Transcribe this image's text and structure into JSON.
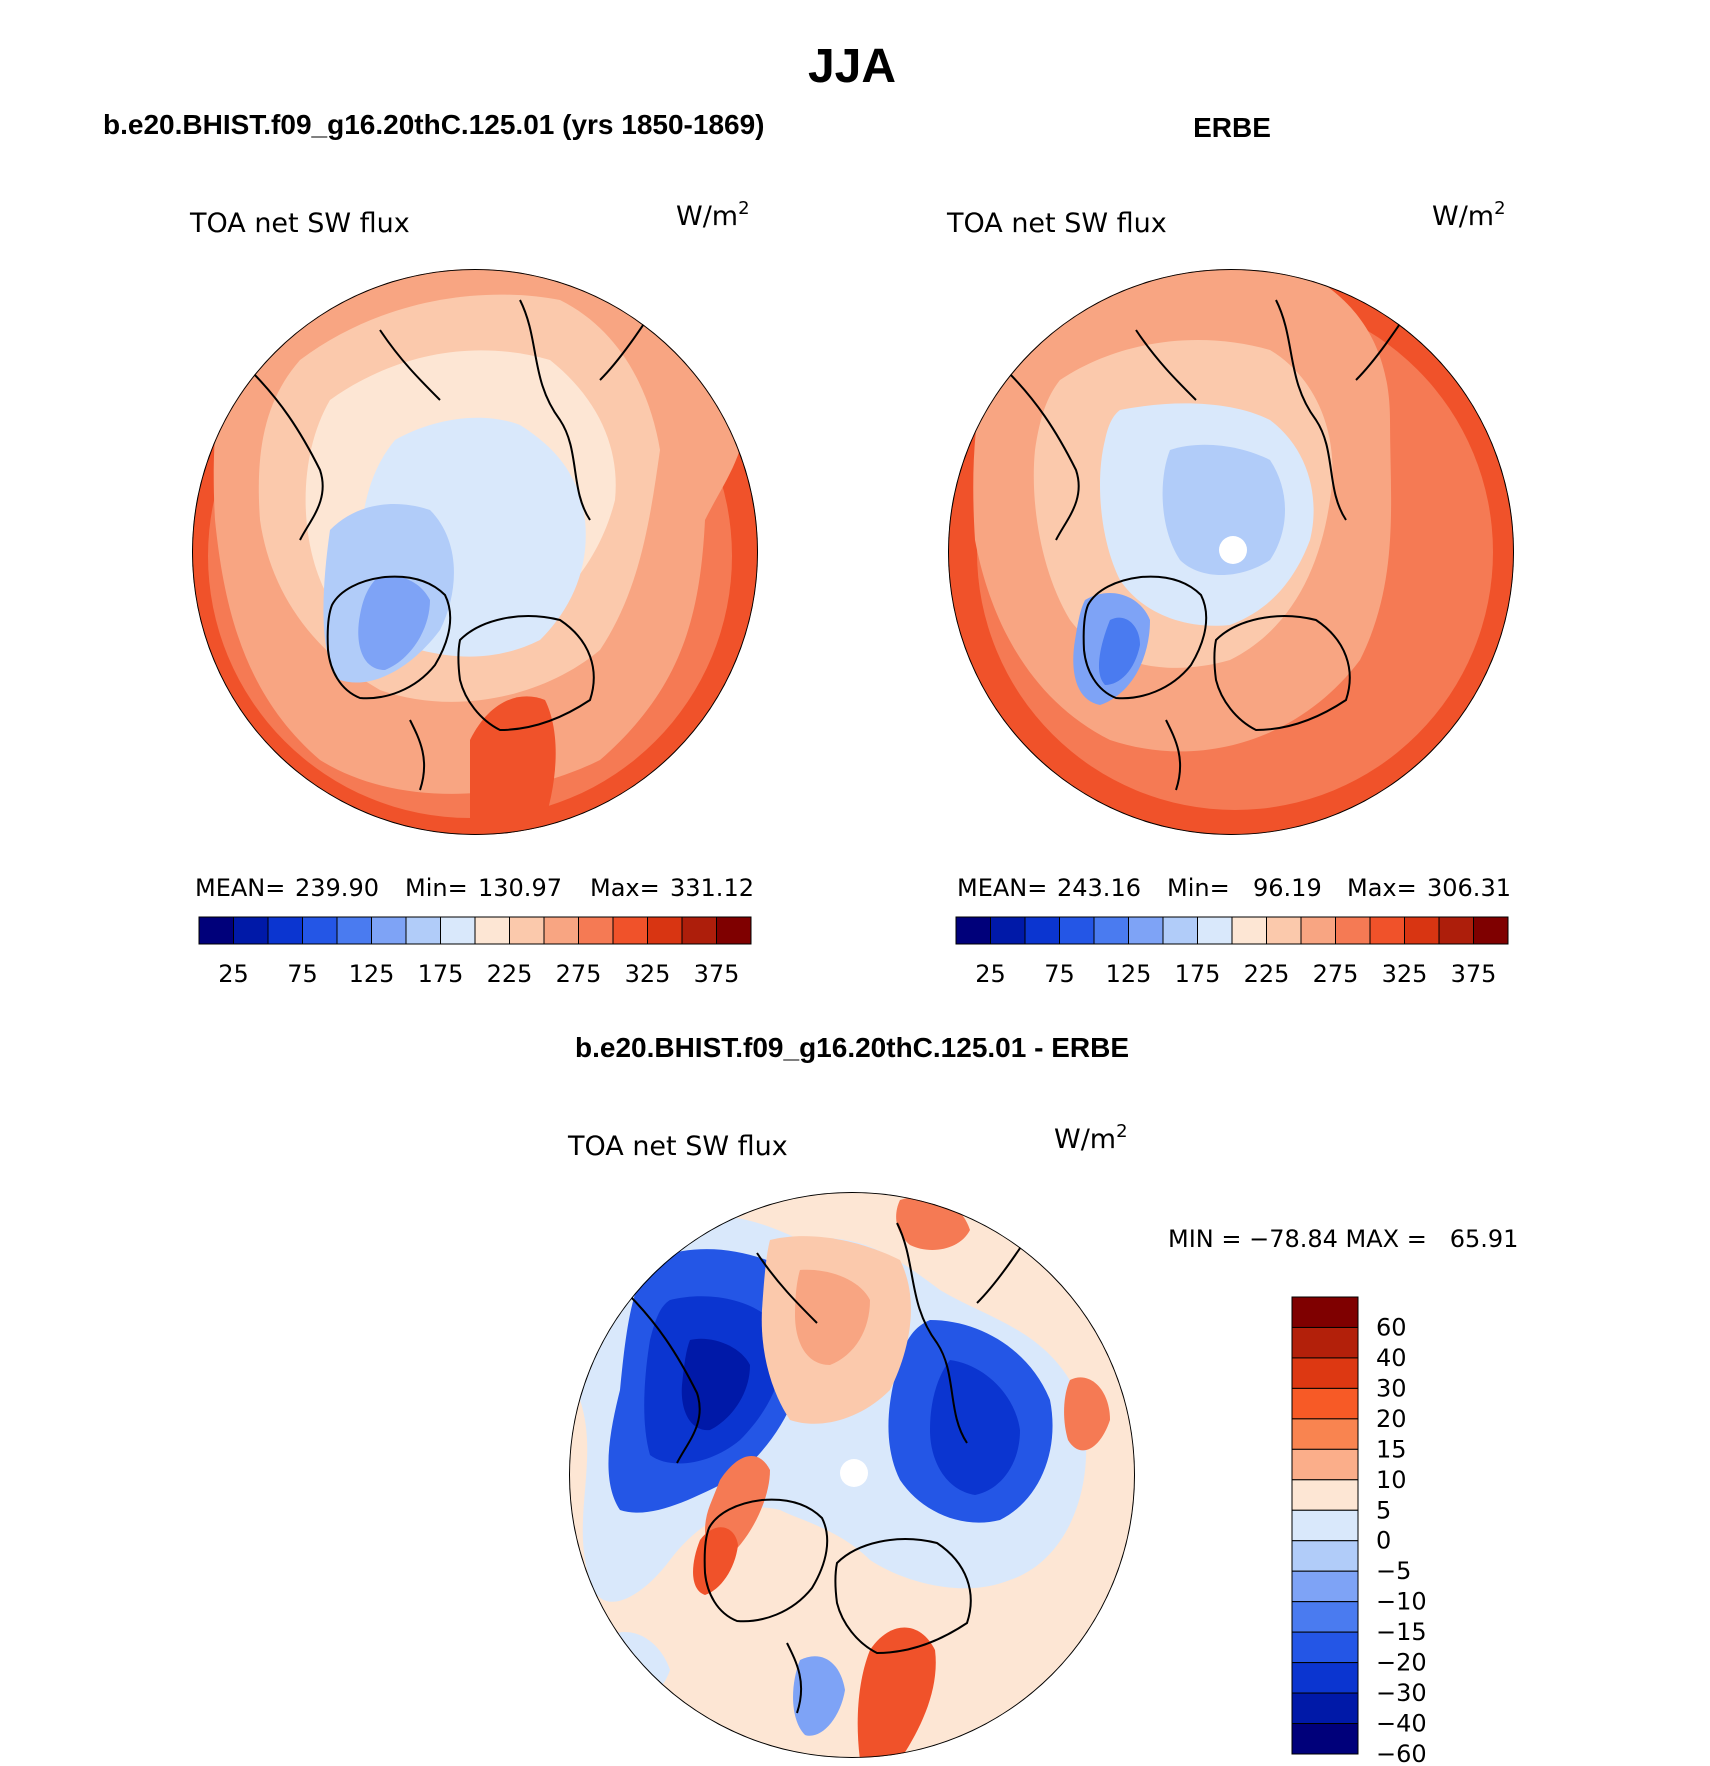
{
  "title": "JJA",
  "panels": [
    {
      "header": "b.e20.BHIST.f09_g16.20thC.125.01 (yrs 1850-1869)",
      "variable": "TOA net SW flux",
      "units": "W/m",
      "units_exp": "2",
      "stats": {
        "mean_label": "MEAN=",
        "mean": "239.90",
        "min_label": "Min=",
        "min": "130.97",
        "max_label": "Max=",
        "max": "331.12"
      }
    },
    {
      "header": "ERBE",
      "variable": "TOA net SW flux",
      "units": "W/m",
      "units_exp": "2",
      "stats": {
        "mean_label": "MEAN=",
        "mean": "243.16",
        "min_label": "Min=",
        "min": "96.19",
        "max_label": "Max=",
        "max": "306.31"
      }
    },
    {
      "header": "b.e20.BHIST.f09_g16.20thC.125.01 - ERBE",
      "variable": "TOA net SW flux",
      "units": "W/m",
      "units_exp": "2",
      "minmax": "MIN = −78.84 MAX =   65.91"
    }
  ],
  "abs_colorbar": {
    "colors": [
      "#00007a",
      "#0019a8",
      "#0b35d0",
      "#2456e6",
      "#4a7bf0",
      "#7ea3f6",
      "#b1ccf9",
      "#d9e8fb",
      "#fde6d4",
      "#fbc9ac",
      "#f8a582",
      "#f57a54",
      "#f0522a",
      "#d83512",
      "#ad1e0b",
      "#7f0000"
    ],
    "labels": [
      "25",
      "75",
      "125",
      "175",
      "225",
      "275",
      "325",
      "375"
    ]
  },
  "diff_colorbar": {
    "colors": [
      "#7f0000",
      "#b3200a",
      "#dd3812",
      "#f75a26",
      "#f98450",
      "#fbae8a",
      "#fde6d4",
      "#d9e8fb",
      "#b1ccf9",
      "#7ea3f6",
      "#4a7bf0",
      "#2456e6",
      "#0b35d0",
      "#0019a8",
      "#00007a"
    ],
    "labels": [
      "60",
      "40",
      "30",
      "20",
      "15",
      "10",
      "5",
      "0",
      "−5",
      "−10",
      "−15",
      "−20",
      "−30",
      "−40",
      "−60"
    ]
  },
  "colors": {
    "land_outline": "#000000",
    "pole_mask": "#ffffff"
  }
}
